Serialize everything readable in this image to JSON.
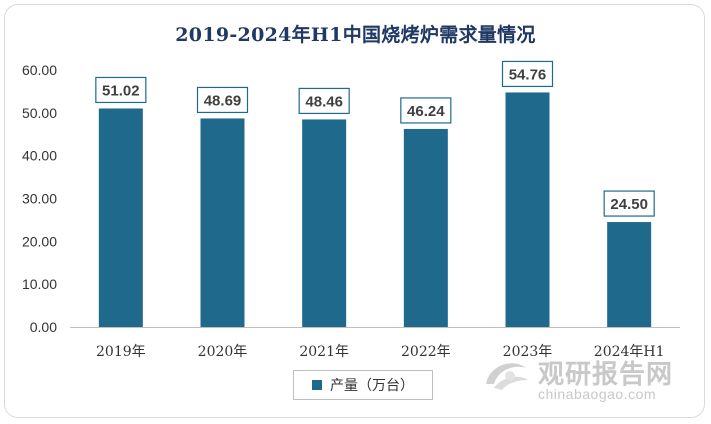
{
  "chart_data": {
    "type": "bar",
    "title": "2019-2024年H1中国烧烤炉需求量情况",
    "categories": [
      "2019年",
      "2020年",
      "2021年",
      "2022年",
      "2023年",
      "2024年H1"
    ],
    "series": [
      {
        "name": "产量（万台）",
        "values": [
          51.02,
          48.69,
          48.46,
          46.24,
          54.76,
          24.5
        ]
      }
    ],
    "data_labels": [
      "51.02",
      "48.69",
      "48.46",
      "46.24",
      "54.76",
      "24.50"
    ],
    "yticks": [
      "0.00",
      "10.00",
      "20.00",
      "30.00",
      "40.00",
      "50.00",
      "60.00"
    ],
    "ylim": [
      0,
      60
    ],
    "grid": false,
    "legend_position": "bottom",
    "bar_color": "#1f6a8c",
    "label_border_color": "#1f6a8c"
  },
  "watermark": {
    "name": "观研报告网",
    "url": "chinabaogao.com"
  }
}
